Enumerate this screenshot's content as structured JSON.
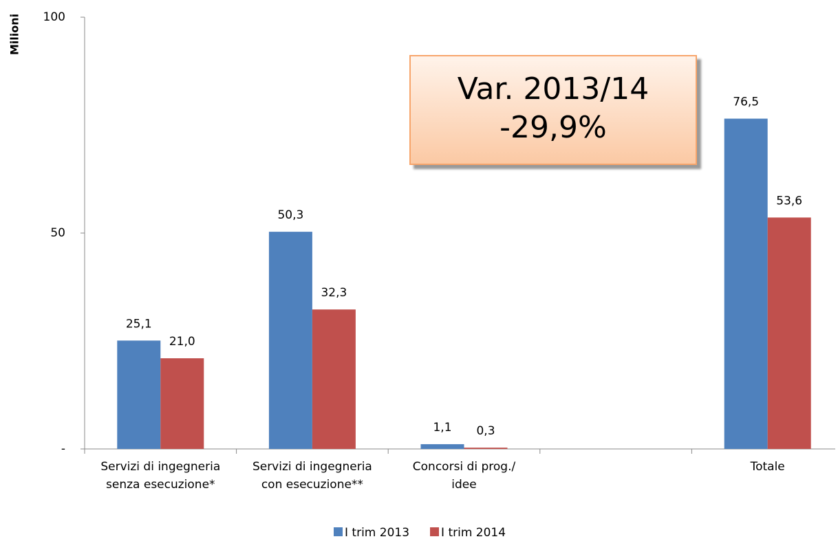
{
  "chart_data": {
    "type": "bar",
    "y_label": "Milioni",
    "categories": [
      "Servizi di ingegneria\nsenza esecuzione*",
      "Servizi di ingegneria\ncon esecuzione**",
      "Concorsi di prog./\nidee",
      null,
      "Totale"
    ],
    "series": [
      {
        "name": "I trim 2013",
        "color": "#4f81bd",
        "values": [
          25.1,
          50.3,
          1.1,
          null,
          76.5
        ],
        "value_labels": [
          "25,1",
          "50,3",
          "1,1",
          null,
          "76,5"
        ]
      },
      {
        "name": "I trim 2014",
        "color": "#c0504d",
        "values": [
          21.0,
          32.3,
          0.3,
          null,
          53.6
        ],
        "value_labels": [
          "21,0",
          "32,3",
          "0,3",
          null,
          "53,6"
        ]
      }
    ],
    "ylim": [
      0,
      100
    ],
    "yticks": [
      {
        "value": 0,
        "label": "-"
      },
      50,
      100
    ],
    "grid": false,
    "legend": "bottom",
    "annotation": {
      "lines": [
        "Var. 2013/14",
        "-29,9%"
      ]
    }
  }
}
